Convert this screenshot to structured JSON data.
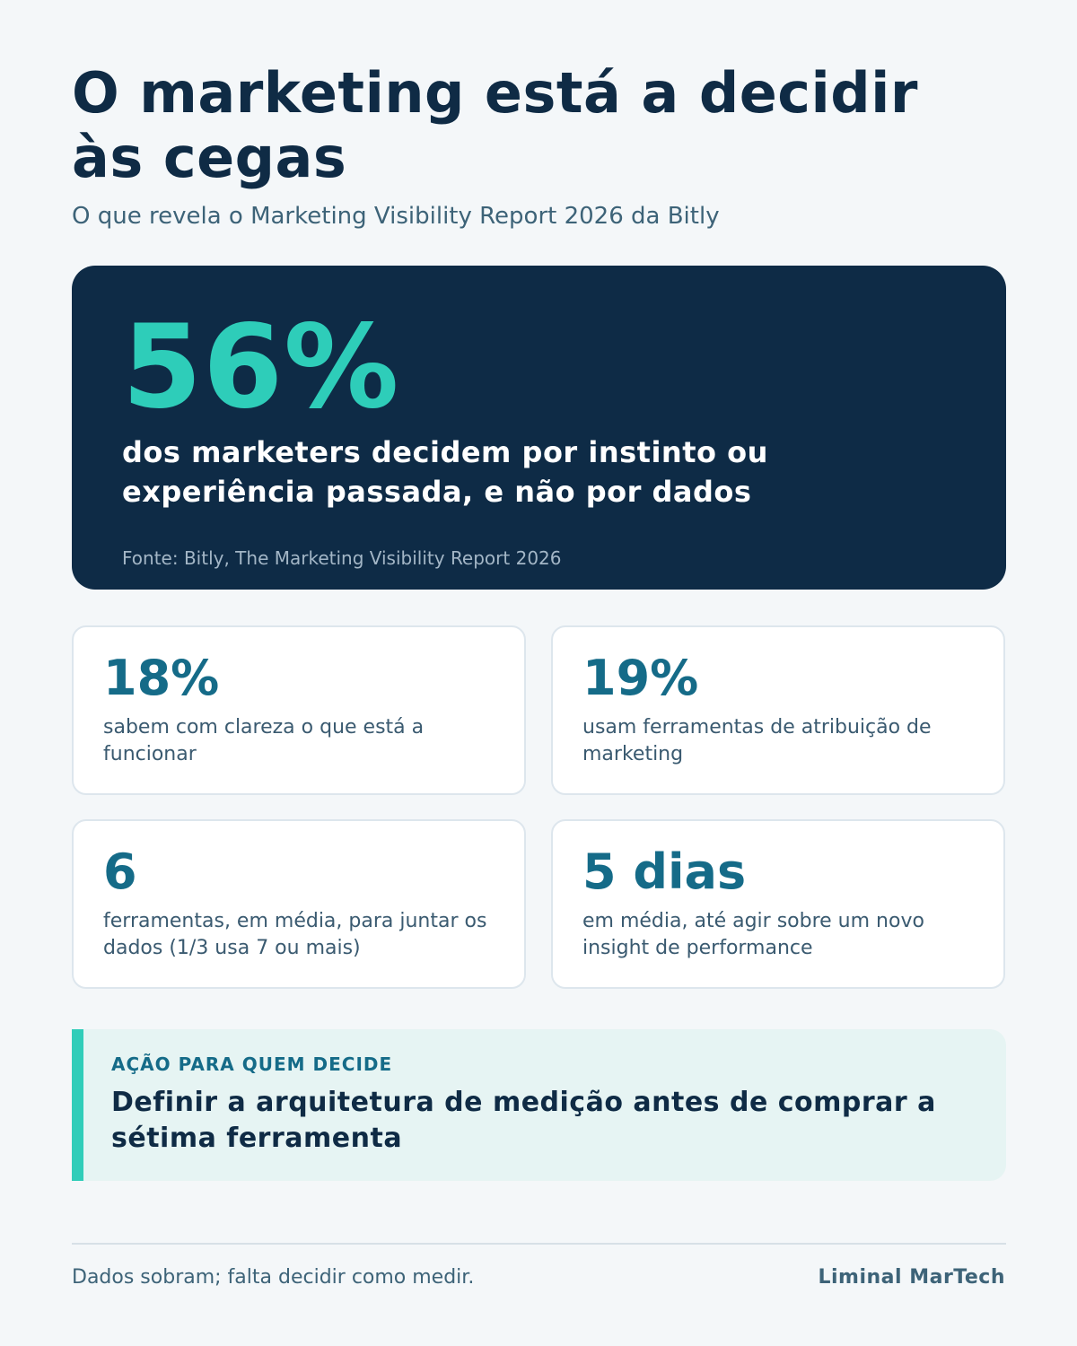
{
  "header": {
    "title": "O marketing está a decidir às cegas",
    "subtitle": "O que revela o Marketing Visibility Report 2026 da Bitly"
  },
  "hero": {
    "value": "56%",
    "description": "dos marketers decidem por instinto ou experiência passada, e não por dados",
    "source": "Fonte: Bitly, The Marketing Visibility Report 2026"
  },
  "stats": [
    {
      "value": "18%",
      "description": "sabem com clareza o que está a funcionar"
    },
    {
      "value": "19%",
      "description": "usam ferramentas de atribuição de marketing"
    },
    {
      "value": "6",
      "description": "ferramentas, em média, para juntar os dados (1/3 usa 7 ou mais)"
    },
    {
      "value": "5 dias",
      "description": "em média, até agir sobre um novo insight de performance"
    }
  ],
  "action": {
    "label": "AÇÃO PARA QUEM DECIDE",
    "text": "Definir a arquitetura de medição antes de comprar a sétima ferramenta"
  },
  "footer": {
    "tagline": "Dados sobram; falta decidir como medir.",
    "brand": "Liminal MarTech"
  },
  "colors": {
    "navy": "#0e2b46",
    "accent": "#2ecdb9",
    "stat_blue": "#156b88",
    "background": "#f4f7f9"
  }
}
